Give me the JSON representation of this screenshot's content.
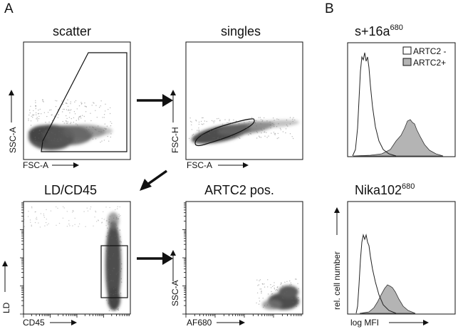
{
  "panel_labels": {
    "a": "A",
    "b": "B"
  },
  "plots": {
    "scatter": {
      "title": "scatter",
      "x_label": "FSC-A",
      "y_label": "SSC-A"
    },
    "singles": {
      "title": "singles",
      "x_label": "FSC-A",
      "y_label": "FSC-H"
    },
    "ldcd45": {
      "title": "LD/CD45",
      "x_label": "CD45",
      "y_label": "LD"
    },
    "artc2pos": {
      "title": "ARTC2 pos.",
      "x_label": "AF680",
      "y_label": "SSC-A"
    }
  },
  "histograms": {
    "top": {
      "title_main": "s+16a",
      "title_sup": "680"
    },
    "bottom": {
      "title_main": "Nika102",
      "title_sup": "680",
      "x_label": "log MFI",
      "y_label": "rel. cell number"
    },
    "legend": [
      {
        "label": "ARTC2 -",
        "fill": "#ffffff"
      },
      {
        "label": "ARTC2+",
        "fill": "#b4b4b4"
      }
    ]
  },
  "colors": {
    "dots": "#555555",
    "hist_fill": "#b4b4b4",
    "axis": "#111111"
  },
  "chart_data": [
    {
      "type": "scatter",
      "title": "scatter",
      "xlabel": "FSC-A",
      "ylabel": "SSC-A",
      "gate": "polygon"
    },
    {
      "type": "scatter",
      "title": "singles",
      "xlabel": "FSC-A",
      "ylabel": "FSC-H",
      "gate": "polygon"
    },
    {
      "type": "scatter",
      "title": "LD/CD45",
      "xlabel": "CD45",
      "ylabel": "LD",
      "gate": "rectangle"
    },
    {
      "type": "scatter",
      "title": "ARTC2 pos.",
      "xlabel": "AF680",
      "ylabel": "SSC-A"
    },
    {
      "type": "area",
      "title": "s+16a680",
      "series": [
        {
          "name": "ARTC2 -"
        },
        {
          "name": "ARTC2+"
        }
      ]
    },
    {
      "type": "area",
      "title": "Nika102680",
      "xlabel": "log MFI",
      "ylabel": "rel. cell number",
      "series": [
        {
          "name": "ARTC2 -"
        },
        {
          "name": "ARTC2+"
        }
      ]
    }
  ]
}
